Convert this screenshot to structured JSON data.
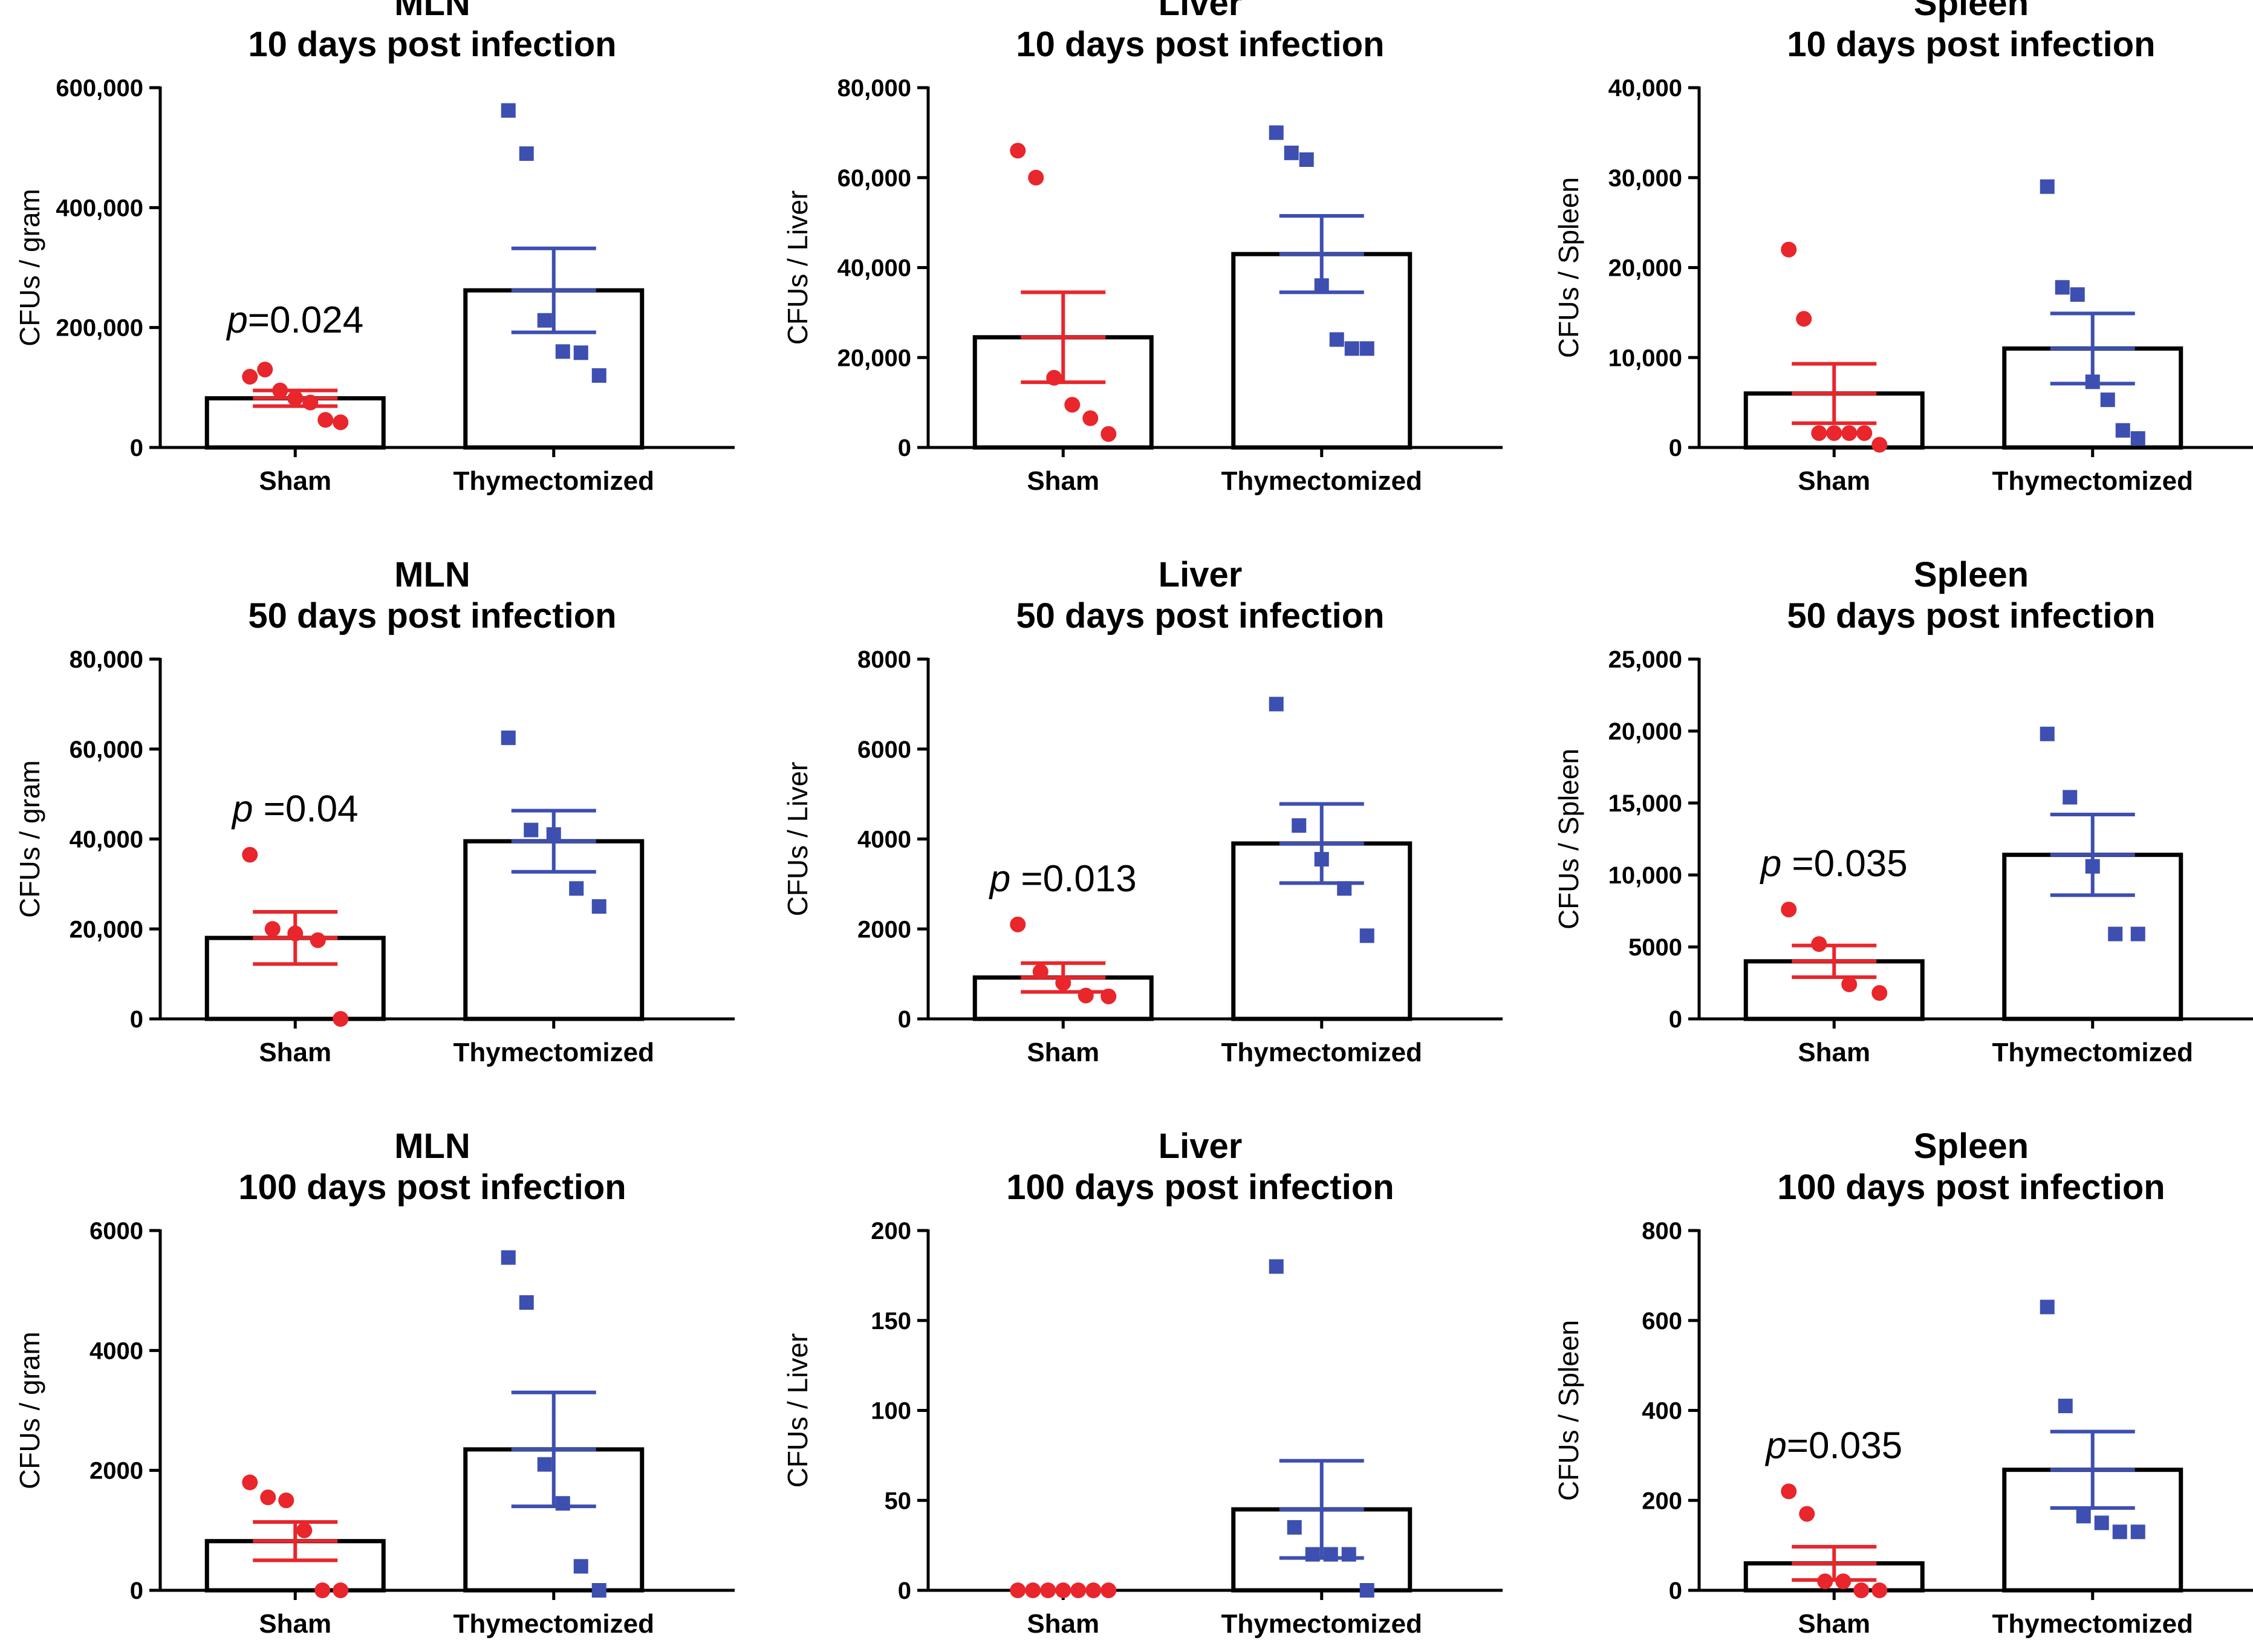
{
  "colors": {
    "sham": "#e8262b",
    "thymectomized": "#3d4fb0",
    "axis": "#000000",
    "bar_fill": "#ffffff"
  },
  "chart_data": [
    {
      "type": "bar",
      "title_lines": [
        "MLN",
        "10 days post infection"
      ],
      "ylabel": "CFUs / gram",
      "ylim": [
        0,
        600000
      ],
      "yticks": [
        0,
        200000,
        400000,
        600000
      ],
      "ytick_labels": [
        "0",
        "200,000",
        "400,000",
        "600,000"
      ],
      "categories": [
        "Sham",
        "Thymectomized"
      ],
      "annotation": {
        "italic": "p",
        "rest": "=0.024"
      },
      "groups": [
        {
          "name": "Sham",
          "mean": 82000,
          "sem": 13000,
          "marker": "circle",
          "points": [
            118000,
            130000,
            95000,
            82000,
            75000,
            46000,
            42000
          ]
        },
        {
          "name": "Thymectomized",
          "mean": 262000,
          "sem": 70000,
          "marker": "square",
          "points": [
            562000,
            490000,
            212000,
            160000,
            158000,
            120000
          ]
        }
      ]
    },
    {
      "type": "bar",
      "title_lines": [
        "Liver",
        "10 days post infection"
      ],
      "ylabel": "CFUs / Liver",
      "ylim": [
        0,
        80000
      ],
      "yticks": [
        0,
        20000,
        40000,
        60000,
        80000
      ],
      "ytick_labels": [
        "0",
        "20,000",
        "40,000",
        "60,000",
        "80,000"
      ],
      "categories": [
        "Sham",
        "Thymectomized"
      ],
      "annotation": null,
      "groups": [
        {
          "name": "Sham",
          "mean": 24500,
          "sem": 10000,
          "marker": "circle",
          "points": [
            66000,
            60000,
            15500,
            9500,
            6500,
            3000
          ]
        },
        {
          "name": "Thymectomized",
          "mean": 43000,
          "sem": 8500,
          "marker": "square",
          "points": [
            70000,
            65500,
            64000,
            36000,
            24000,
            22000,
            22000
          ]
        }
      ]
    },
    {
      "type": "bar",
      "title_lines": [
        "Spleen",
        "10 days post infection"
      ],
      "ylabel": "CFUs / Spleen",
      "ylim": [
        0,
        40000
      ],
      "yticks": [
        0,
        10000,
        20000,
        30000,
        40000
      ],
      "ytick_labels": [
        "0",
        "10,000",
        "20,000",
        "30,000",
        "40,000"
      ],
      "categories": [
        "Sham",
        "Thymectomized"
      ],
      "annotation": null,
      "groups": [
        {
          "name": "Sham",
          "mean": 6000,
          "sem": 3300,
          "marker": "circle",
          "points": [
            22000,
            14300,
            1600,
            1600,
            1600,
            1600,
            300
          ]
        },
        {
          "name": "Thymectomized",
          "mean": 11000,
          "sem": 3900,
          "marker": "square",
          "points": [
            29000,
            17800,
            17000,
            7300,
            5300,
            1900,
            1000
          ]
        }
      ]
    },
    {
      "type": "bar",
      "title_lines": [
        "MLN",
        "50 days post infection"
      ],
      "ylabel": "CFUs / gram",
      "ylim": [
        0,
        80000
      ],
      "yticks": [
        0,
        20000,
        40000,
        60000,
        80000
      ],
      "ytick_labels": [
        "0",
        "20,000",
        "40,000",
        "60,000",
        "80,000"
      ],
      "categories": [
        "Sham",
        "Thymectomized"
      ],
      "annotation": {
        "italic": "p",
        "rest": " =0.04"
      },
      "groups": [
        {
          "name": "Sham",
          "mean": 18000,
          "sem": 5800,
          "marker": "circle",
          "points": [
            36500,
            20000,
            19000,
            17500,
            0
          ]
        },
        {
          "name": "Thymectomized",
          "mean": 39500,
          "sem": 6800,
          "marker": "square",
          "points": [
            62500,
            42000,
            41000,
            29000,
            25000
          ]
        }
      ]
    },
    {
      "type": "bar",
      "title_lines": [
        "Liver",
        "50 days post infection"
      ],
      "ylabel": "CFUs / Liver",
      "ylim": [
        0,
        8000
      ],
      "yticks": [
        0,
        2000,
        4000,
        6000,
        8000
      ],
      "ytick_labels": [
        "0",
        "2000",
        "4000",
        "6000",
        "8000"
      ],
      "categories": [
        "Sham",
        "Thymectomized"
      ],
      "annotation": {
        "italic": "p",
        "rest": " =0.013"
      },
      "groups": [
        {
          "name": "Sham",
          "mean": 920,
          "sem": 320,
          "marker": "circle",
          "points": [
            2100,
            1050,
            800,
            520,
            500
          ]
        },
        {
          "name": "Thymectomized",
          "mean": 3900,
          "sem": 880,
          "marker": "square",
          "points": [
            7000,
            4300,
            3550,
            2900,
            1850
          ]
        }
      ]
    },
    {
      "type": "bar",
      "title_lines": [
        "Spleen",
        "50 days post infection"
      ],
      "ylabel": "CFUs / Spleen",
      "ylim": [
        0,
        25000
      ],
      "yticks": [
        0,
        5000,
        10000,
        15000,
        20000,
        25000
      ],
      "ytick_labels": [
        "0",
        "5000",
        "10,000",
        "15,000",
        "20,000",
        "25,000"
      ],
      "categories": [
        "Sham",
        "Thymectomized"
      ],
      "annotation": {
        "italic": "p",
        "rest": " =0.035"
      },
      "groups": [
        {
          "name": "Sham",
          "mean": 4000,
          "sem": 1100,
          "marker": "circle",
          "points": [
            7600,
            5200,
            2400,
            1800
          ]
        },
        {
          "name": "Thymectomized",
          "mean": 11400,
          "sem": 2800,
          "marker": "square",
          "points": [
            19800,
            15400,
            10600,
            5900,
            5900
          ]
        }
      ]
    },
    {
      "type": "bar",
      "title_lines": [
        "MLN",
        "100 days post infection"
      ],
      "ylabel": "CFUs / gram",
      "ylim": [
        0,
        6000
      ],
      "yticks": [
        0,
        2000,
        4000,
        6000
      ],
      "ytick_labels": [
        "0",
        "2000",
        "4000",
        "6000"
      ],
      "categories": [
        "Sham",
        "Thymectomized"
      ],
      "annotation": null,
      "groups": [
        {
          "name": "Sham",
          "mean": 820,
          "sem": 320,
          "marker": "circle",
          "points": [
            1800,
            1550,
            1500,
            1000,
            0,
            0
          ]
        },
        {
          "name": "Thymectomized",
          "mean": 2350,
          "sem": 950,
          "marker": "square",
          "points": [
            5550,
            4800,
            2100,
            1450,
            400,
            0
          ]
        }
      ]
    },
    {
      "type": "bar",
      "title_lines": [
        "Liver",
        "100 days post infection"
      ],
      "ylabel": "CFUs / Liver",
      "ylim": [
        0,
        200
      ],
      "yticks": [
        0,
        50,
        100,
        150,
        200
      ],
      "ytick_labels": [
        "0",
        "50",
        "100",
        "150",
        "200"
      ],
      "categories": [
        "Sham",
        "Thymectomized"
      ],
      "annotation": null,
      "groups": [
        {
          "name": "Sham",
          "mean": 0,
          "sem": 0,
          "marker": "circle",
          "points": [
            0,
            0,
            0,
            0,
            0,
            0,
            0
          ]
        },
        {
          "name": "Thymectomized",
          "mean": 45,
          "sem": 27,
          "marker": "square",
          "points": [
            180,
            35,
            20,
            20,
            20,
            0
          ]
        }
      ]
    },
    {
      "type": "bar",
      "title_lines": [
        "Spleen",
        "100 days post infection"
      ],
      "ylabel": "CFUs / Spleen",
      "ylim": [
        0,
        800
      ],
      "yticks": [
        0,
        200,
        400,
        600,
        800
      ],
      "ytick_labels": [
        "0",
        "200",
        "400",
        "600",
        "800"
      ],
      "categories": [
        "Sham",
        "Thymectomized"
      ],
      "annotation": {
        "italic": "p",
        "rest": "=0.035"
      },
      "groups": [
        {
          "name": "Sham",
          "mean": 60,
          "sem": 37,
          "marker": "circle",
          "points": [
            220,
            170,
            20,
            20,
            0,
            0
          ]
        },
        {
          "name": "Thymectomized",
          "mean": 268,
          "sem": 85,
          "marker": "square",
          "points": [
            630,
            410,
            165,
            150,
            130,
            130
          ]
        }
      ]
    }
  ]
}
